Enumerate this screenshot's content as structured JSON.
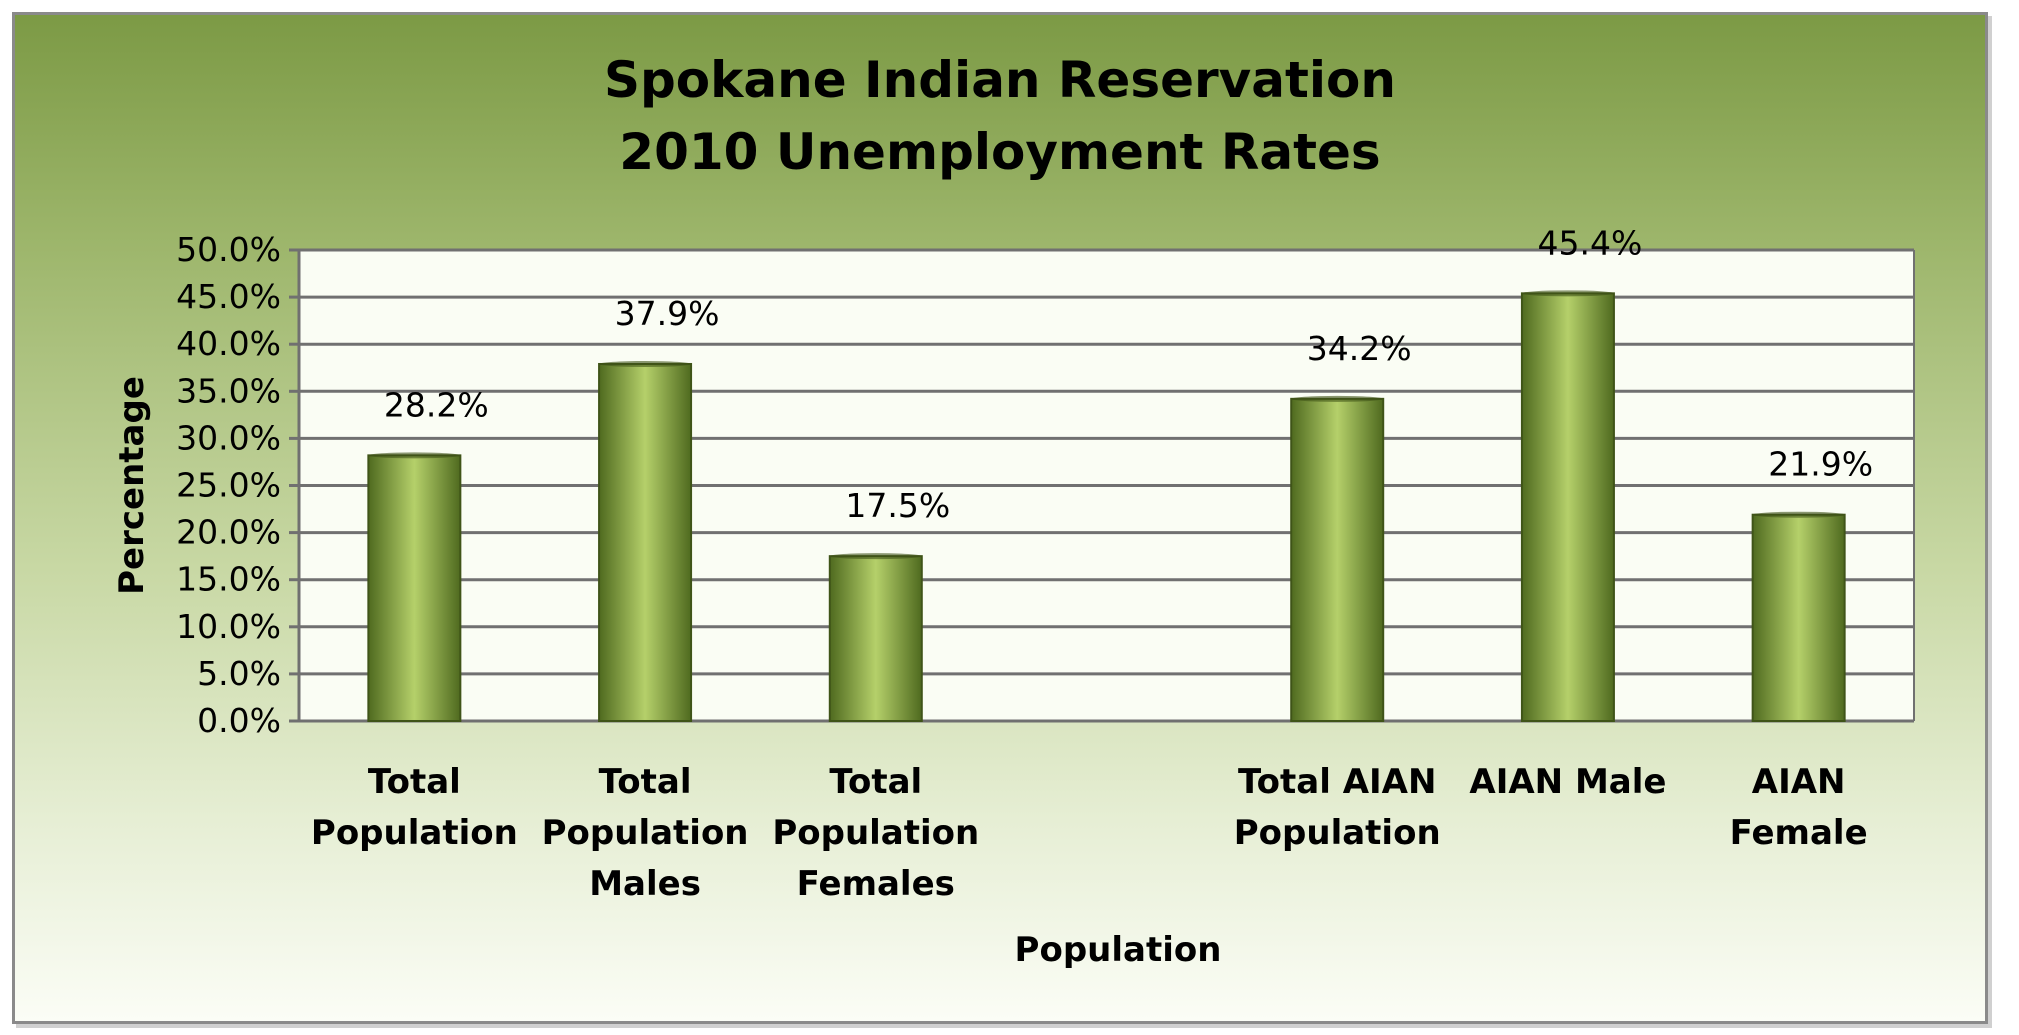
{
  "chart_data": {
    "type": "bar",
    "title": [
      "Spokane Indian Reservation",
      "2010 Unemployment Rates"
    ],
    "xlabel": "Population",
    "ylabel": "Percentage",
    "categories": [
      [
        "Total",
        "Population"
      ],
      [
        "Total",
        "Population",
        "Males"
      ],
      [
        "Total",
        "Population",
        "Females"
      ],
      [],
      [
        "Total AIAN",
        "Population"
      ],
      [
        "AIAN Male"
      ],
      [
        "AIAN",
        "Female"
      ]
    ],
    "values": [
      28.2,
      37.9,
      17.5,
      null,
      34.2,
      45.4,
      21.9
    ],
    "data_labels": [
      "28.2%",
      "37.9%",
      "17.5%",
      "",
      "34.2%",
      "45.4%",
      "21.9%"
    ],
    "ylim": [
      0,
      50
    ],
    "y_ticks": [
      0,
      5,
      10,
      15,
      20,
      25,
      30,
      35,
      40,
      45,
      50
    ],
    "y_tick_labels": [
      "0.0%",
      "5.0%",
      "10.0%",
      "15.0%",
      "20.0%",
      "25.0%",
      "30.0%",
      "35.0%",
      "40.0%",
      "45.0%",
      "50.0%"
    ],
    "grid": true,
    "legend": "none",
    "colors": {
      "bar_light": "#b5d06a",
      "bar_dark": "#4f6a1f",
      "bar_edge": "#3f5418",
      "plot_bg": "#fafdf4",
      "gridline": "#707070",
      "background_top": "#7c9a45",
      "background_bottom": "#fbfdf6"
    }
  }
}
